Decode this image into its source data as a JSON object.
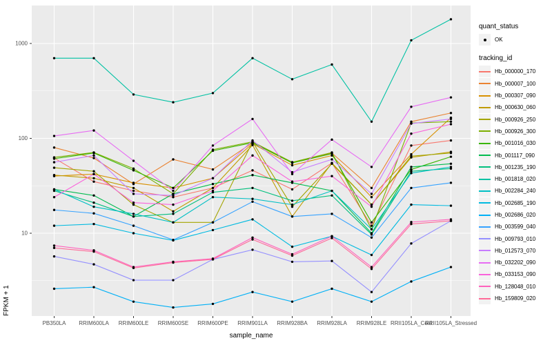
{
  "colors": {
    "panel_bg": "#EBEBEB",
    "grid": "#FFFFFF",
    "point": "#000000",
    "tick_label": "#4D4D4D",
    "axis_title": "#000000",
    "legend_key_bg": "#F2F2F2"
  },
  "legend": {
    "quant_status": {
      "title": "quant_status",
      "items": [
        {
          "label": "OK",
          "marker": "black-point"
        }
      ]
    },
    "tracking_id": {
      "title": "tracking_id"
    }
  },
  "chart_data": {
    "type": "line",
    "title": "",
    "xlabel": "sample_name",
    "ylabel": "FPKM + 1",
    "y_scale": "log10",
    "y_ticks": [
      10,
      100,
      1000
    ],
    "y_minor_ticks": [
      3.1623,
      31.623,
      316.23
    ],
    "ylim": [
      1.34,
      2500
    ],
    "grid": "white major+minor on gray panel",
    "legend_position": "right",
    "point_marker": "black dot on every vertex",
    "x_categories": [
      "PB350LA",
      "RRIM600LA",
      "RRIM600LE",
      "RRIM600SE",
      "RRIM600PE",
      "RRIM901LA",
      "RRIM928BA",
      "RRIM928LA",
      "RRIM928LE",
      "RRII105LA_Cold",
      "RRII105LA_Stressed"
    ],
    "series": [
      {
        "name": "Hb_000000_170",
        "color": "#F8766D",
        "values": [
          62,
          35,
          28,
          24,
          30,
          46,
          29,
          55,
          12,
          84,
          95
        ]
      },
      {
        "name": "Hb_000007_100",
        "color": "#EA8331",
        "values": [
          80,
          62,
          33,
          60,
          47,
          90,
          56,
          70,
          30,
          150,
          185
        ]
      },
      {
        "name": "Hb_000307_090",
        "color": "#D89000",
        "values": [
          40,
          42,
          34,
          30,
          38,
          88,
          52,
          66,
          24,
          68,
          165
        ]
      },
      {
        "name": "Hb_000630_060",
        "color": "#C09B00",
        "values": [
          41,
          38,
          30,
          17,
          30,
          85,
          15,
          55,
          20,
          63,
          72
        ]
      },
      {
        "name": "Hb_000926_250",
        "color": "#A3A500",
        "values": [
          49,
          45,
          20,
          13,
          13,
          92,
          19,
          54,
          20,
          65,
          70
        ]
      },
      {
        "name": "Hb_000926_300",
        "color": "#7CAE00",
        "values": [
          63,
          71,
          48,
          26,
          76,
          92,
          56,
          71,
          11,
          145,
          150
        ]
      },
      {
        "name": "Hb_001016_030",
        "color": "#39B600",
        "values": [
          61,
          70,
          46,
          30,
          74,
          90,
          55,
          69,
          13,
          47,
          64
        ]
      },
      {
        "name": "Hb_001117_090",
        "color": "#00BB4E",
        "values": [
          29,
          25,
          15,
          26,
          33,
          41,
          34,
          28,
          10,
          50,
          54
        ]
      },
      {
        "name": "Hb_001235_190",
        "color": "#00BF7D",
        "values": [
          28,
          21,
          15,
          16,
          27,
          30,
          22,
          25,
          9.7,
          45,
          48
        ]
      },
      {
        "name": "Hb_001818_020",
        "color": "#00C1A3",
        "values": [
          700,
          700,
          290,
          240,
          300,
          700,
          420,
          600,
          150,
          1080,
          1800
        ]
      },
      {
        "name": "Hb_002284_240",
        "color": "#00BFC4",
        "values": [
          29,
          19,
          16,
          13,
          24,
          23,
          20,
          28,
          11,
          43,
          50
        ]
      },
      {
        "name": "Hb_002685_190",
        "color": "#00BAE0",
        "values": [
          12,
          12.5,
          10,
          8.4,
          10.8,
          14,
          7.2,
          9.3,
          5.9,
          20,
          19.5
        ]
      },
      {
        "name": "Hb_002686_020",
        "color": "#00B0F6",
        "values": [
          2.6,
          2.7,
          1.9,
          1.65,
          1.8,
          2.4,
          1.9,
          2.6,
          1.9,
          3.1,
          4.4
        ]
      },
      {
        "name": "Hb_003599_040",
        "color": "#35A2FF",
        "values": [
          17.6,
          16.2,
          12,
          8.5,
          13,
          21.5,
          15,
          16,
          9,
          30,
          34
        ]
      },
      {
        "name": "Hb_009793_010",
        "color": "#9590FF",
        "values": [
          5.7,
          4.7,
          3.2,
          3.2,
          5.3,
          6.7,
          5,
          5.1,
          2.4,
          7.8,
          13.5
        ]
      },
      {
        "name": "Hb_012573_070",
        "color": "#C77CFF",
        "values": [
          56,
          66,
          26,
          25,
          38,
          95,
          44,
          60,
          26,
          143,
          160
        ]
      },
      {
        "name": "Hb_032202_090",
        "color": "#E76BF3",
        "values": [
          106,
          121,
          58,
          28,
          84,
          160,
          42,
          97,
          50,
          215,
          270
        ]
      },
      {
        "name": "Hb_033153_090",
        "color": "#FA62DB",
        "values": [
          24,
          42,
          21,
          20,
          28,
          66,
          35,
          40,
          19,
          112,
          141
        ]
      },
      {
        "name": "Hb_128048_010",
        "color": "#FF62BC",
        "values": [
          7.4,
          6.6,
          4.4,
          5,
          5.4,
          9,
          6,
          9.3,
          4.4,
          13.1,
          14
        ]
      },
      {
        "name": "Hb_159809_020",
        "color": "#FF6A98",
        "values": [
          7,
          6.4,
          4.3,
          4.9,
          5.3,
          8.6,
          5.8,
          8.9,
          4.2,
          12.5,
          13.5
        ]
      }
    ]
  }
}
